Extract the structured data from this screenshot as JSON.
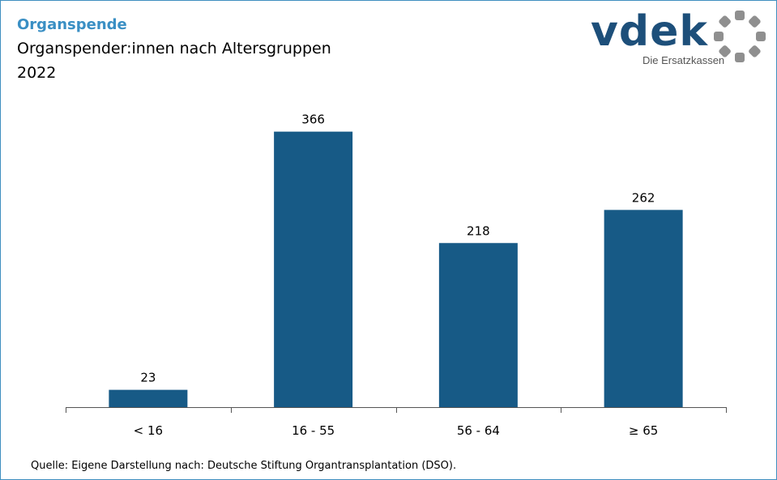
{
  "header": {
    "kicker": "Organspende",
    "title": "Organspender:innen nach Altersgruppen",
    "subtitle": "2022"
  },
  "logo": {
    "wordmark": "vdek",
    "tagline": "Die Ersatzkassen"
  },
  "source": "Quelle: Eigene Darstellung nach: Deutsche Stiftung Organtransplantation (DSO).",
  "colors": {
    "bar": "#175a86",
    "kicker": "#3a8fc4",
    "frame": "#3f8fbf"
  },
  "chart_data": {
    "type": "bar",
    "categories": [
      "< 16",
      "16 - 55",
      "56 - 64",
      "≥ 65"
    ],
    "values": [
      23,
      366,
      218,
      262
    ],
    "ylim": [
      0,
      400
    ],
    "grid": false,
    "data_labels": true
  }
}
